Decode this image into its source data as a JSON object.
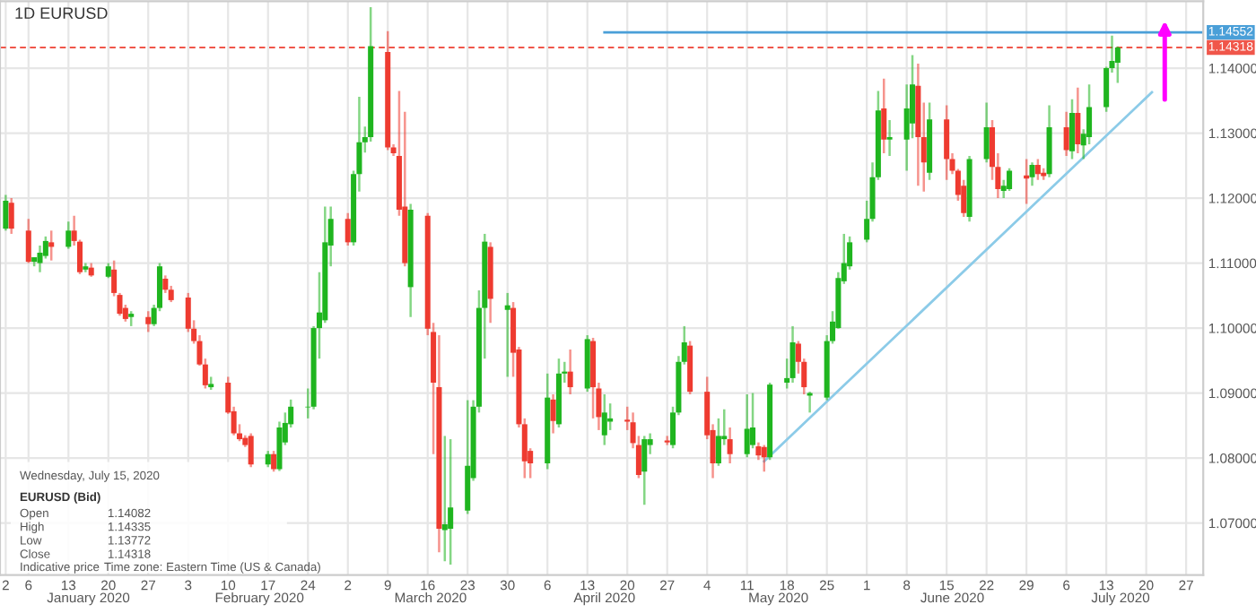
{
  "chart_data": {
    "type": "candlestick",
    "title": "1D EURUSD",
    "x": [
      "2020-01-02",
      "2020-01-03",
      "2020-01-06",
      "2020-01-07",
      "2020-01-08",
      "2020-01-09",
      "2020-01-10",
      "2020-01-13",
      "2020-01-14",
      "2020-01-15",
      "2020-01-16",
      "2020-01-17",
      "2020-01-20",
      "2020-01-21",
      "2020-01-22",
      "2020-01-23",
      "2020-01-24",
      "2020-01-27",
      "2020-01-28",
      "2020-01-29",
      "2020-01-30",
      "2020-01-31",
      "2020-02-03",
      "2020-02-04",
      "2020-02-05",
      "2020-02-06",
      "2020-02-07",
      "2020-02-10",
      "2020-02-11",
      "2020-02-12",
      "2020-02-13",
      "2020-02-14",
      "2020-02-17",
      "2020-02-18",
      "2020-02-19",
      "2020-02-20",
      "2020-02-21",
      "2020-02-24",
      "2020-02-25",
      "2020-02-26",
      "2020-02-27",
      "2020-02-28",
      "2020-03-02",
      "2020-03-03",
      "2020-03-04",
      "2020-03-05",
      "2020-03-06",
      "2020-03-09",
      "2020-03-10",
      "2020-03-11",
      "2020-03-12",
      "2020-03-13",
      "2020-03-16",
      "2020-03-17",
      "2020-03-18",
      "2020-03-19",
      "2020-03-20",
      "2020-03-23",
      "2020-03-24",
      "2020-03-25",
      "2020-03-26",
      "2020-03-27",
      "2020-03-30",
      "2020-03-31",
      "2020-04-01",
      "2020-04-02",
      "2020-04-03",
      "2020-04-06",
      "2020-04-07",
      "2020-04-08",
      "2020-04-09",
      "2020-04-10",
      "2020-04-13",
      "2020-04-14",
      "2020-04-15",
      "2020-04-16",
      "2020-04-17",
      "2020-04-20",
      "2020-04-21",
      "2020-04-22",
      "2020-04-23",
      "2020-04-24",
      "2020-04-27",
      "2020-04-28",
      "2020-04-29",
      "2020-04-30",
      "2020-05-01",
      "2020-05-04",
      "2020-05-05",
      "2020-05-06",
      "2020-05-07",
      "2020-05-08",
      "2020-05-11",
      "2020-05-12",
      "2020-05-13",
      "2020-05-14",
      "2020-05-15",
      "2020-05-18",
      "2020-05-19",
      "2020-05-20",
      "2020-05-21",
      "2020-05-22",
      "2020-05-25",
      "2020-05-26",
      "2020-05-27",
      "2020-05-28",
      "2020-05-29",
      "2020-06-01",
      "2020-06-02",
      "2020-06-03",
      "2020-06-04",
      "2020-06-05",
      "2020-06-08",
      "2020-06-09",
      "2020-06-10",
      "2020-06-11",
      "2020-06-12",
      "2020-06-15",
      "2020-06-16",
      "2020-06-17",
      "2020-06-18",
      "2020-06-19",
      "2020-06-22",
      "2020-06-23",
      "2020-06-24",
      "2020-06-25",
      "2020-06-26",
      "2020-06-29",
      "2020-06-30",
      "2020-07-01",
      "2020-07-02",
      "2020-07-03",
      "2020-07-06",
      "2020-07-07",
      "2020-07-08",
      "2020-07-09",
      "2020-07-10",
      "2020-07-13",
      "2020-07-14",
      "2020-07-15"
    ],
    "ohlc": [
      [
        1.1153,
        1.1205,
        1.115,
        1.1196
      ],
      [
        1.1193,
        1.12,
        1.1145,
        1.1153
      ],
      [
        1.115,
        1.1168,
        1.11,
        1.1102
      ],
      [
        1.1102,
        1.1109,
        1.1095,
        1.1109
      ],
      [
        1.11,
        1.1127,
        1.1086,
        1.1116
      ],
      [
        1.1111,
        1.1141,
        1.1107,
        1.1134
      ],
      [
        1.1132,
        1.115,
        1.1104,
        1.1125
      ],
      [
        1.1125,
        1.1164,
        1.1122,
        1.115
      ],
      [
        1.115,
        1.1173,
        1.1127,
        1.1134
      ],
      [
        1.1133,
        1.1136,
        1.1083,
        1.1086
      ],
      [
        1.109,
        1.11,
        1.1086,
        1.1095
      ],
      [
        1.1093,
        1.11,
        1.1079,
        1.1081
      ],
      [
        1.1079,
        1.11,
        1.1077,
        1.1095
      ],
      [
        1.109,
        1.1104,
        1.1049,
        1.1054
      ],
      [
        1.1051,
        1.1054,
        1.1019,
        1.1022
      ],
      [
        1.1031,
        1.1036,
        1.101,
        1.1014
      ],
      [
        1.1017,
        1.1026,
        1.1003,
        1.1022
      ],
      [
        1.1017,
        1.1026,
        1.0994,
        1.1006
      ],
      [
        1.1006,
        1.1036,
        1.1003,
        1.1031
      ],
      [
        1.1031,
        1.11,
        1.1026,
        1.1095
      ],
      [
        1.1076,
        1.1081,
        1.1054,
        1.1059
      ],
      [
        1.1059,
        1.1065,
        1.104,
        1.1043
      ],
      [
        1.1047,
        1.1054,
        1.0994,
        1.0999
      ],
      [
        1.0999,
        1.1012,
        1.0976,
        1.098
      ],
      [
        1.098,
        1.0989,
        1.0942,
        1.0944
      ],
      [
        1.0944,
        1.0953,
        1.0907,
        1.0912
      ],
      [
        1.0909,
        1.0925,
        1.0905,
        1.0914
      ],
      [
        1.0916,
        1.0925,
        1.0868,
        1.087
      ],
      [
        1.0872,
        1.0879,
        1.0835,
        1.0838
      ],
      [
        1.0838,
        1.0852,
        1.0826,
        1.0829
      ],
      [
        1.0831,
        1.0835,
        1.0817,
        1.082
      ],
      [
        1.0834,
        1.0838,
        1.0786,
        1.079
      ],
      [
        1.079,
        1.0811,
        1.0786,
        1.0806
      ],
      [
        1.0806,
        1.0811,
        1.0779,
        1.0783
      ],
      [
        1.0783,
        1.0856,
        1.078,
        1.0847
      ],
      [
        1.0824,
        1.087,
        1.082,
        1.0854
      ],
      [
        1.0852,
        1.089,
        1.0847,
        1.0879
      ],
      [
        1.0878,
        1.0907,
        1.0861,
        1.0879
      ],
      [
        1.0879,
        1.1003,
        1.0875,
        1.1
      ],
      [
        1.1,
        1.1086,
        1.0953,
        1.1024
      ],
      [
        1.1012,
        1.1187,
        1.1008,
        1.1132
      ],
      [
        1.1127,
        1.1187,
        1.1095,
        1.1168
      ],
      [
        1.1168,
        1.1177,
        1.1127,
        1.1132
      ],
      [
        1.1132,
        1.1242,
        1.1127,
        1.1237
      ],
      [
        1.1237,
        1.1356,
        1.121,
        1.1286
      ],
      [
        1.1286,
        1.131,
        1.127,
        1.1294
      ],
      [
        1.1294,
        1.1494,
        1.1287,
        1.1434
      ],
      [
        1.1425,
        1.1457,
        1.1274,
        1.1278
      ],
      [
        1.1278,
        1.1283,
        1.1265,
        1.1269
      ],
      [
        1.1265,
        1.1365,
        1.1173,
        1.1182
      ],
      [
        1.1187,
        1.1333,
        1.1095,
        1.11
      ],
      [
        1.1063,
        1.1191,
        1.1017,
        1.1182
      ],
      [
        1.1173,
        1.1177,
        1.0989,
        1.0999
      ],
      [
        1.0994,
        1.1008,
        1.0806,
        1.0916
      ],
      [
        1.0909,
        1.0989,
        1.0655,
        1.0691
      ],
      [
        1.0689,
        1.0834,
        1.0641,
        1.0698
      ],
      [
        1.0691,
        1.0829,
        1.0636,
        1.0724
      ],
      [
        1.0719,
        1.0889,
        1.0714,
        1.0788
      ],
      [
        1.0769,
        1.0889,
        1.0765,
        1.0879
      ],
      [
        1.0879,
        1.1058,
        1.087,
        1.1031
      ],
      [
        1.1031,
        1.1145,
        1.0953,
        1.1133
      ],
      [
        1.1125,
        1.1132,
        1.1008,
        1.1045
      ],
      [
        1.1028,
        1.1054,
        1.0925,
        1.1035
      ],
      [
        1.1031,
        1.104,
        1.0925,
        1.0962
      ],
      [
        1.0967,
        1.0971,
        1.0847,
        1.0852
      ],
      [
        1.0852,
        1.0861,
        1.0769,
        1.0795
      ],
      [
        1.0811,
        1.0815,
        1.0769,
        1.0792
      ],
      [
        1.0792,
        1.093,
        1.0783,
        1.0893
      ],
      [
        1.089,
        1.0898,
        1.0838,
        1.0857
      ],
      [
        1.0852,
        1.0953,
        1.0847,
        1.093
      ],
      [
        1.093,
        1.0948,
        1.0916,
        1.0933
      ],
      [
        1.0933,
        1.0967,
        1.0898,
        1.0909
      ],
      [
        1.0907,
        1.0989,
        1.0902,
        1.0983
      ],
      [
        1.098,
        1.0985,
        1.0861,
        1.0909
      ],
      [
        1.0907,
        1.0916,
        1.0843,
        1.0863
      ],
      [
        1.0835,
        1.0898,
        1.082,
        1.087
      ],
      [
        1.0856,
        1.0884,
        1.0843,
        1.0861
      ],
      [
        1.0859,
        1.0879,
        1.0843,
        1.0856
      ],
      [
        1.0855,
        1.087,
        1.0815,
        1.0823
      ],
      [
        1.082,
        1.0834,
        1.0769,
        1.0774
      ],
      [
        1.0779,
        1.0834,
        1.0728,
        1.0829
      ],
      [
        1.082,
        1.0838,
        1.0806,
        1.0829
      ],
      [
        1.0827,
        1.0834,
        1.082,
        1.0824
      ],
      [
        1.082,
        1.0879,
        1.0815,
        1.087
      ],
      [
        1.087,
        1.0957,
        1.0866,
        1.0948
      ],
      [
        1.0948,
        1.1003,
        1.0944,
        1.0978
      ],
      [
        1.0973,
        1.098,
        1.0898,
        1.0902
      ],
      [
        1.0902,
        1.0925,
        1.0829,
        1.0835
      ],
      [
        1.0843,
        1.0852,
        1.0769,
        1.0792
      ],
      [
        1.0792,
        1.0861,
        1.0788,
        1.0834
      ],
      [
        1.0829,
        1.0875,
        1.082,
        1.0834
      ],
      [
        1.0829,
        1.0847,
        1.0792,
        1.0806
      ],
      [
        1.0806,
        1.0898,
        1.0801,
        1.0845
      ],
      [
        1.082,
        1.09,
        1.0815,
        1.0847
      ],
      [
        1.0818,
        1.0824,
        1.0797,
        1.0804
      ],
      [
        1.0817,
        1.082,
        1.0779,
        1.0801
      ],
      [
        1.0801,
        1.0916,
        1.0797,
        1.0913
      ],
      [
        1.0916,
        1.0953,
        1.0907,
        1.0923
      ],
      [
        1.0923,
        1.1003,
        1.0916,
        1.0978
      ],
      [
        1.0976,
        1.098,
        1.093,
        1.0948
      ],
      [
        1.0948,
        1.0953,
        1.0898,
        1.0909
      ],
      [
        1.0896,
        1.0902,
        1.087,
        1.09
      ],
      [
        1.0893,
        1.0989,
        1.0889,
        1.098
      ],
      [
        1.098,
        1.1026,
        1.0976,
        1.101
      ],
      [
        1.1,
        1.1086,
        1.0999,
        1.1077
      ],
      [
        1.1072,
        1.1145,
        1.1068,
        1.11
      ],
      [
        1.1095,
        1.1141,
        1.109,
        1.1132
      ],
      [
        1.1136,
        1.1196,
        1.1132,
        1.1168
      ],
      [
        1.1168,
        1.1255,
        1.1164,
        1.1232
      ],
      [
        1.1232,
        1.1365,
        1.1228,
        1.1335
      ],
      [
        1.1338,
        1.1384,
        1.1269,
        1.129
      ],
      [
        1.129,
        1.132,
        1.1265,
        1.1294
      ],
      [
        1.129,
        1.1375,
        1.1242,
        1.1338
      ],
      [
        1.1315,
        1.142,
        1.1292,
        1.1375
      ],
      [
        1.1373,
        1.1407,
        1.1219,
        1.1294
      ],
      [
        1.1294,
        1.1347,
        1.121,
        1.1255
      ],
      [
        1.1239,
        1.1347,
        1.1228,
        1.1321
      ],
      [
        1.1321,
        1.1343,
        1.1228,
        1.126
      ],
      [
        1.126,
        1.1269,
        1.1237,
        1.1242
      ],
      [
        1.1242,
        1.1245,
        1.1196,
        1.1205
      ],
      [
        1.1219,
        1.1228,
        1.1171,
        1.1177
      ],
      [
        1.1171,
        1.1265,
        1.1164,
        1.126
      ],
      [
        1.126,
        1.1347,
        1.1255,
        1.1309
      ],
      [
        1.1309,
        1.132,
        1.1228,
        1.1248
      ],
      [
        1.1248,
        1.1269,
        1.12,
        1.1214
      ],
      [
        1.1211,
        1.1228,
        1.12,
        1.1219
      ],
      [
        1.1214,
        1.1246,
        1.1211,
        1.1242
      ],
      [
        1.1235,
        1.126,
        1.1191,
        1.123
      ],
      [
        1.1232,
        1.1255,
        1.1219,
        1.1251
      ],
      [
        1.1251,
        1.126,
        1.1228,
        1.1237
      ],
      [
        1.1239,
        1.1246,
        1.1228,
        1.1234
      ],
      [
        1.1237,
        1.1343,
        1.1232,
        1.1309
      ],
      [
        1.1309,
        1.1333,
        1.1265,
        1.1274
      ],
      [
        1.1272,
        1.1352,
        1.126,
        1.1331
      ],
      [
        1.1331,
        1.137,
        1.1269,
        1.1283
      ],
      [
        1.1281,
        1.1306,
        1.126,
        1.1299
      ],
      [
        1.1294,
        1.1375,
        1.1283,
        1.134
      ],
      [
        1.134,
        1.1402,
        1.1333,
        1.14
      ],
      [
        1.14,
        1.145,
        1.1393,
        1.1411
      ],
      [
        1.14082,
        1.14335,
        1.13772,
        1.14318
      ]
    ],
    "series": [
      {
        "type": "line",
        "x": [
          "2020-04-16",
          "2020-07-30"
        ],
        "values": [
          1.14552,
          1.14552
        ],
        "color": "#4a9fd8",
        "value_labels": [
          null,
          "1.14552"
        ]
      },
      {
        "type": "line",
        "x": [
          "2020-05-14",
          "2020-07-21"
        ],
        "values": [
          1.0795,
          1.1363
        ],
        "color": "#8ccbe8"
      }
    ],
    "ref_lines": [
      {
        "axis": "y",
        "value": 1.14318,
        "label": "1.14318",
        "color": "#f0564a",
        "line_style": "dashed"
      }
    ],
    "xlim": [
      "2020-01-01",
      "2020-07-30"
    ],
    "xticks": [
      {
        "value": "2020-01-02",
        "label": "2"
      },
      {
        "value": "2020-01-06",
        "label": "6"
      },
      {
        "value": "2020-01-13",
        "label": "13"
      },
      {
        "value": "2020-01-20",
        "label": "20"
      },
      {
        "value": "2020-01-27",
        "label": "27"
      },
      {
        "value": "2020-02-03",
        "label": "3"
      },
      {
        "value": "2020-02-10",
        "label": "10"
      },
      {
        "value": "2020-02-17",
        "label": "17"
      },
      {
        "value": "2020-02-24",
        "label": "24"
      },
      {
        "value": "2020-03-02",
        "label": "2"
      },
      {
        "value": "2020-03-09",
        "label": "9"
      },
      {
        "value": "2020-03-16",
        "label": "16"
      },
      {
        "value": "2020-03-23",
        "label": "23"
      },
      {
        "value": "2020-03-30",
        "label": "30"
      },
      {
        "value": "2020-04-06",
        "label": "6"
      },
      {
        "value": "2020-04-13",
        "label": "13"
      },
      {
        "value": "2020-04-20",
        "label": "20"
      },
      {
        "value": "2020-04-27",
        "label": "27"
      },
      {
        "value": "2020-05-04",
        "label": "4"
      },
      {
        "value": "2020-05-11",
        "label": "11"
      },
      {
        "value": "2020-05-18",
        "label": "18"
      },
      {
        "value": "2020-05-25",
        "label": "25"
      },
      {
        "value": "2020-06-01",
        "label": "1"
      },
      {
        "value": "2020-06-08",
        "label": "8"
      },
      {
        "value": "2020-06-15",
        "label": "15"
      },
      {
        "value": "2020-06-22",
        "label": "22"
      },
      {
        "value": "2020-06-29",
        "label": "29"
      },
      {
        "value": "2020-07-06",
        "label": "6"
      },
      {
        "value": "2020-07-13",
        "label": "13"
      },
      {
        "value": "2020-07-20",
        "label": "20"
      },
      {
        "value": "2020-07-27",
        "label": "27"
      }
    ],
    "ylim": [
      1.062,
      1.1503
    ],
    "yticks": [
      {
        "value": 1.07,
        "label": "1.07000"
      },
      {
        "value": 1.08,
        "label": "1.08000"
      },
      {
        "value": 1.09,
        "label": "1.09000"
      },
      {
        "value": 1.1,
        "label": "1.10000"
      },
      {
        "value": 1.11,
        "label": "1.11000"
      },
      {
        "value": 1.12,
        "label": "1.12000"
      },
      {
        "value": 1.13,
        "label": "1.13000"
      },
      {
        "value": 1.14,
        "label": "1.14000"
      }
    ],
    "grid": true,
    "annotations": [
      "January 2020",
      "February 2020",
      "March 2020",
      "April 2020",
      "May 2020",
      "June 2020",
      "July 2020",
      "Wednesday, July 15, 2020",
      "EURUSD (Bid)",
      "Open",
      "1.14082",
      "High",
      "1.14335",
      "Low",
      "1.13772",
      "Close",
      "1.14318",
      "Indicative price",
      "Time zone: Eastern Time (US & Canada)"
    ]
  }
}
